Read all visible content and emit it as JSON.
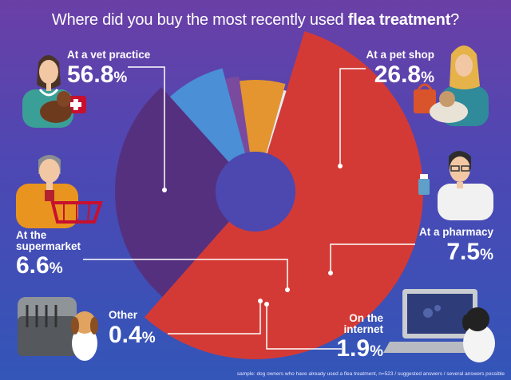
{
  "title": {
    "prefix": "Where did you buy the most recently used ",
    "bold": "flea treatment",
    "suffix": "?"
  },
  "footnote": "sample: dog owners who have already used a flea treatment, n=523 / suggested answers / several answers possible",
  "chart_data": {
    "type": "pie",
    "variant": "donut",
    "title": "Where did you buy the most recently used flea treatment?",
    "unit": "%",
    "slices": [
      {
        "label": "At a vet practice",
        "value": 56.8,
        "value_text": "56.8",
        "color": "#d43a35"
      },
      {
        "label": "At a pet shop",
        "value": 26.8,
        "value_text": "26.8",
        "color": "#55307f"
      },
      {
        "label": "At a pharmacy",
        "value": 7.5,
        "value_text": "7.5",
        "color": "#4b8fd6"
      },
      {
        "label": "On the internet",
        "value": 1.9,
        "value_text": "1.9",
        "color": "#7a4a9e"
      },
      {
        "label": "At the supermarket",
        "value": 6.6,
        "value_text": "6.6",
        "color": "#e5952f"
      },
      {
        "label": "Other",
        "value": 0.4,
        "value_text": "0.4",
        "color": "#ececec"
      }
    ]
  },
  "labels": {
    "vet": {
      "name": "At a vet practice",
      "value": "56.8",
      "pct": "%"
    },
    "petshop": {
      "name": "At a pet shop",
      "value": "26.8",
      "pct": "%"
    },
    "pharmacy": {
      "name": "At a pharmacy",
      "value": "7.5",
      "pct": "%"
    },
    "supermarket": {
      "name_line1": "At the",
      "name_line2": "supermarket",
      "value": "6.6",
      "pct": "%"
    },
    "other": {
      "name": "Other",
      "value": "0.4",
      "pct": "%"
    },
    "internet": {
      "name_line1": "On the",
      "name_line2": "internet",
      "value": "1.9",
      "pct": "%"
    }
  },
  "colors": {
    "accent": "#d43a35",
    "bg_top": "#6a3fa6",
    "bg_bottom": "#3356b8"
  }
}
